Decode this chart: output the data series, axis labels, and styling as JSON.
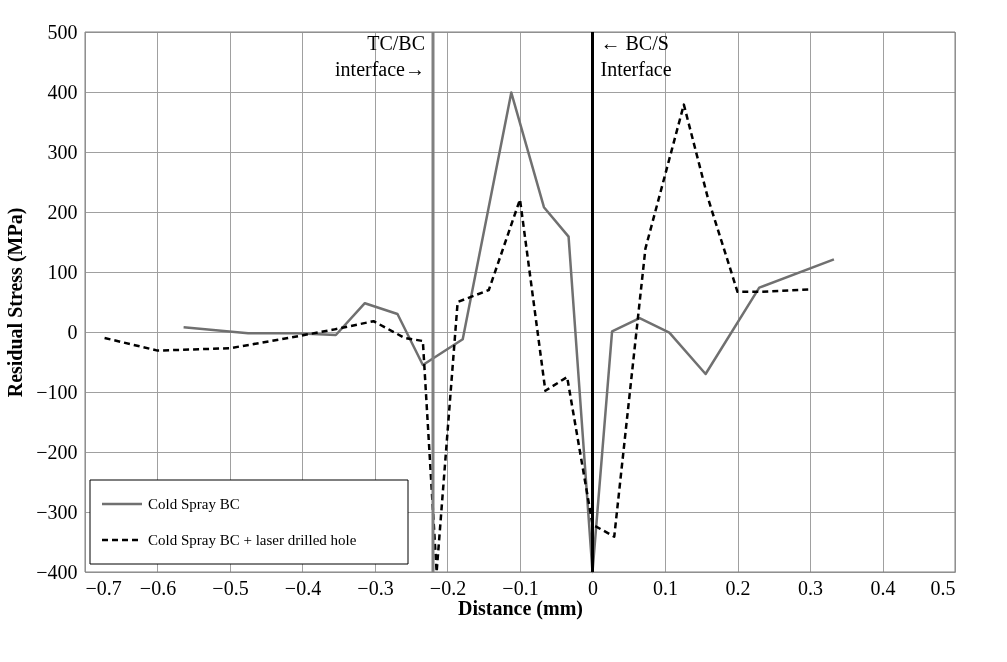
{
  "chart_data": {
    "type": "line",
    "xlabel": "Distance (mm)",
    "ylabel": "Residual Stress  (MPa)",
    "xlim": [
      -0.7,
      0.5
    ],
    "xticks": [
      -0.7,
      -0.6,
      -0.5,
      -0.4,
      -0.3,
      -0.2,
      -0.1,
      0,
      0.1,
      0.2,
      0.3,
      0.4,
      0.5
    ],
    "ylim": [
      -400,
      500
    ],
    "yticks": [
      -400,
      -300,
      -200,
      -100,
      0,
      100,
      200,
      300,
      400,
      500
    ],
    "grid": true,
    "legend": "bottom left",
    "series": [
      {
        "name": "Cold Spray BC",
        "color": "#707070",
        "line_style": "solid",
        "x": [
          -0.564,
          -0.475,
          -0.409,
          -0.354,
          -0.314,
          -0.269,
          -0.234,
          -0.179,
          -0.112,
          -0.067,
          -0.033,
          0,
          0.027,
          0.065,
          0.106,
          0.156,
          0.23,
          0.333
        ],
        "values": [
          8,
          -2,
          -2,
          -5,
          48,
          30,
          -55,
          -12,
          399,
          208,
          159,
          -400,
          1,
          23,
          -1,
          -70,
          74,
          121
        ]
      },
      {
        "name": "Cold Spray  BC + laser drilled hole",
        "color": "#000000",
        "line_style": "dashed",
        "x": [
          -0.673,
          -0.6,
          -0.5,
          -0.42,
          -0.357,
          -0.302,
          -0.259,
          -0.234,
          -0.215,
          -0.186,
          -0.143,
          -0.1,
          -0.065,
          -0.035,
          0,
          0.03,
          0.073,
          0.126,
          0.159,
          0.2,
          0.232,
          0.301
        ],
        "values": [
          -10,
          -31,
          -27,
          -10,
          4,
          18,
          -10,
          -15,
          -400,
          50,
          70,
          221,
          -98,
          -75,
          -321,
          -341,
          139,
          379,
          224,
          67,
          67,
          71
        ]
      }
    ],
    "ref_lines": [
      {
        "axis": "x",
        "value": -0.22,
        "label": "TC/BC\ninterface→",
        "color": "#808080"
      },
      {
        "axis": "x",
        "value": 0,
        "label": "← BC/S\nInterface",
        "color": "#000000"
      }
    ]
  }
}
